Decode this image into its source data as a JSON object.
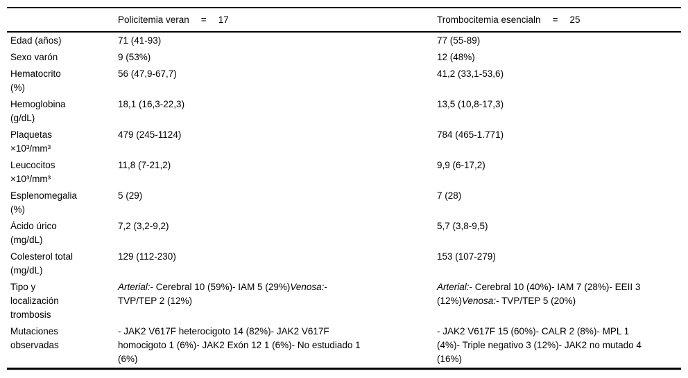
{
  "page": {
    "background": "#ffffff",
    "text_color": "#000000",
    "border_color": "#000000"
  },
  "table": {
    "header": {
      "col1": "",
      "col2": {
        "title": "Policitemia veran",
        "eq": "=",
        "value": "17"
      },
      "col3": {
        "title": "Trombocitemia esencialn",
        "eq": "=",
        "value": "25"
      }
    },
    "rows": [
      {
        "label": "Edad (años)",
        "pv": "71 (41-93)",
        "te": "77 (55-89)"
      },
      {
        "label": "Sexo varón",
        "pv": "9 (53%)",
        "te": "12 (48%)"
      },
      {
        "label": "Hematocrito\n(%)",
        "pv": "56 (47,9-67,7)",
        "te": "41,2 (33,1-53,6)"
      },
      {
        "label": "Hemoglobina\n(g/dL)",
        "pv": "18,1 (16,3-22,3)",
        "te": "13,5 (10,8-17,3)"
      },
      {
        "label": "Plaquetas\n×10³/mm³",
        "pv": "479 (245-1124)",
        "te": "784 (465-1.771)"
      },
      {
        "label": "Leucocitos\n×10³/mm³",
        "pv": "11,8 (7-21,2)",
        "te": "9,9 (6-17,2)"
      },
      {
        "label": "Esplenomegalia\n(%)",
        "pv": "5 (29)",
        "te": "7 (28)"
      },
      {
        "label": "Ácido úrico\n(mg/dL)",
        "pv": "7,2 (3,2-9,2)",
        "te": "5,7 (3,8-9,5)"
      },
      {
        "label": "Colesterol total\n(mg/dL)",
        "pv": "129 (112-230)",
        "te": "153 (107-279)"
      },
      {
        "label": "Tipo y\nlocalización\ntrombosis",
        "pv_segments": [
          {
            "text": "Arterial:",
            "style": "italic"
          },
          {
            "text": "- Cerebral 10 (59%)- IAM 5 (29%)",
            "style": "normal"
          },
          {
            "text": "Venosa:",
            "style": "italic"
          },
          {
            "text": "- TVP/TEP 2 (12%)",
            "style": "normal"
          }
        ],
        "te_segments": [
          {
            "text": "Arterial:",
            "style": "italic"
          },
          {
            "text": "- Cerebral 10 (40%)- IAM 7 (28%)- EEII 3 (12%)",
            "style": "normal"
          },
          {
            "text": "Venosa:",
            "style": "italic"
          },
          {
            "text": "- TVP/TEP 5 (20%)",
            "style": "normal"
          }
        ]
      },
      {
        "label": "Mutaciones\nobservadas",
        "pv": "- JAK2 V617F heterocigoto 14 (82%)- JAK2 V617F homocigoto 1 (6%)- JAK2 Exón 12 1 (6%)- No estudiado 1 (6%)",
        "te": "- JAK2 V617F 15 (60%)- CALR 2 (8%)- MPL 1 (4%)- Triple negativo 3 (12%)- JAK2 no mutado 4 (16%)"
      }
    ]
  }
}
